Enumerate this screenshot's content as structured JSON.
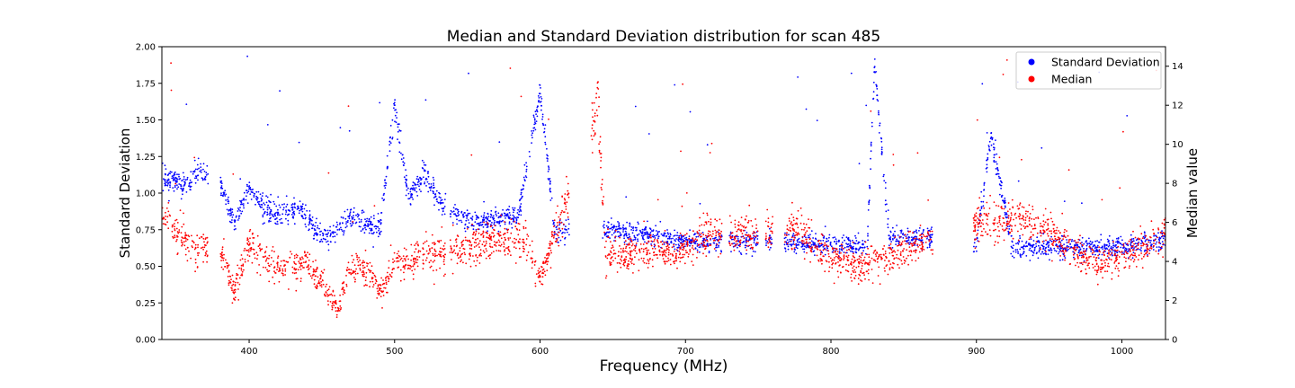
{
  "chart_data": {
    "type": "scatter",
    "title": "Median and Standard Deviation distribution for scan 485",
    "xlabel": "Frequency (MHz)",
    "ylabel_left": "Standard Deviation",
    "ylabel_right": "Median value",
    "xlim": [
      340,
      1030
    ],
    "ylim_left": [
      0,
      2
    ],
    "ylim_right": [
      0,
      15
    ],
    "x_ticks": [
      400,
      500,
      600,
      700,
      800,
      900,
      1000
    ],
    "y_left_ticks": [
      "0.00",
      "0.25",
      "0.50",
      "0.75",
      "1.00",
      "1.25",
      "1.50",
      "1.75",
      "2.00"
    ],
    "y_right_ticks": [
      0,
      2,
      4,
      6,
      8,
      10,
      12,
      14
    ],
    "grid": false,
    "legend_position": "top-right",
    "series": [
      {
        "name": "Standard Deviation",
        "axis": "left",
        "color": "#0000ff",
        "baseline": [
          [
            340,
            1.1
          ],
          [
            355,
            1.05
          ],
          [
            365,
            1.15
          ],
          [
            380,
            1.05
          ],
          [
            390,
            0.8
          ],
          [
            400,
            1.05
          ],
          [
            410,
            0.9
          ],
          [
            420,
            0.85
          ],
          [
            435,
            0.9
          ],
          [
            445,
            0.75
          ],
          [
            455,
            0.7
          ],
          [
            470,
            0.85
          ],
          [
            480,
            0.8
          ],
          [
            490,
            0.75
          ],
          [
            500,
            1.6
          ],
          [
            510,
            0.95
          ],
          [
            520,
            1.15
          ],
          [
            530,
            0.95
          ],
          [
            540,
            0.85
          ],
          [
            560,
            0.8
          ],
          [
            585,
            0.85
          ],
          [
            600,
            1.7
          ],
          [
            610,
            0.75
          ],
          [
            645,
            0.75
          ],
          [
            700,
            0.68
          ],
          [
            720,
            0.66
          ],
          [
            760,
            0.68
          ],
          [
            780,
            0.66
          ],
          [
            800,
            0.64
          ],
          [
            825,
            0.64
          ],
          [
            830,
            1.9
          ],
          [
            840,
            0.68
          ],
          [
            850,
            0.7
          ],
          [
            870,
            0.68
          ],
          [
            900,
            0.64
          ],
          [
            910,
            1.4
          ],
          [
            925,
            0.62
          ],
          [
            960,
            0.63
          ],
          [
            1000,
            0.63
          ],
          [
            1030,
            0.68
          ]
        ],
        "gaps": [
          [
            372,
            380
          ],
          [
            535,
            538
          ],
          [
            620,
            643
          ],
          [
            725,
            730
          ],
          [
            750,
            755
          ],
          [
            760,
            768
          ],
          [
            870,
            898
          ]
        ]
      },
      {
        "name": "Median",
        "axis": "right",
        "color": "#ff0000",
        "baseline": [
          [
            340,
            6.5
          ],
          [
            350,
            5.5
          ],
          [
            360,
            4.8
          ],
          [
            380,
            4.5
          ],
          [
            390,
            2.5
          ],
          [
            400,
            5.0
          ],
          [
            410,
            4.0
          ],
          [
            420,
            3.6
          ],
          [
            440,
            3.8
          ],
          [
            450,
            3.0
          ],
          [
            460,
            1.5
          ],
          [
            470,
            3.8
          ],
          [
            480,
            3.6
          ],
          [
            490,
            2.5
          ],
          [
            500,
            3.8
          ],
          [
            520,
            4.3
          ],
          [
            540,
            4.5
          ],
          [
            560,
            5.0
          ],
          [
            590,
            5.2
          ],
          [
            600,
            3.0
          ],
          [
            610,
            5.2
          ],
          [
            640,
            12.0
          ],
          [
            645,
            4.5
          ],
          [
            700,
            4.5
          ],
          [
            710,
            5.3
          ],
          [
            760,
            5.5
          ],
          [
            780,
            5.6
          ],
          [
            800,
            4.2
          ],
          [
            820,
            3.8
          ],
          [
            840,
            4.2
          ],
          [
            860,
            4.9
          ],
          [
            900,
            6.0
          ],
          [
            930,
            6.2
          ],
          [
            950,
            5.6
          ],
          [
            980,
            3.8
          ],
          [
            1000,
            4.3
          ],
          [
            1030,
            5.3
          ]
        ],
        "gaps": [
          [
            372,
            380
          ],
          [
            535,
            538
          ],
          [
            620,
            635
          ],
          [
            725,
            730
          ],
          [
            750,
            755
          ],
          [
            760,
            768
          ],
          [
            870,
            898
          ]
        ]
      }
    ]
  }
}
